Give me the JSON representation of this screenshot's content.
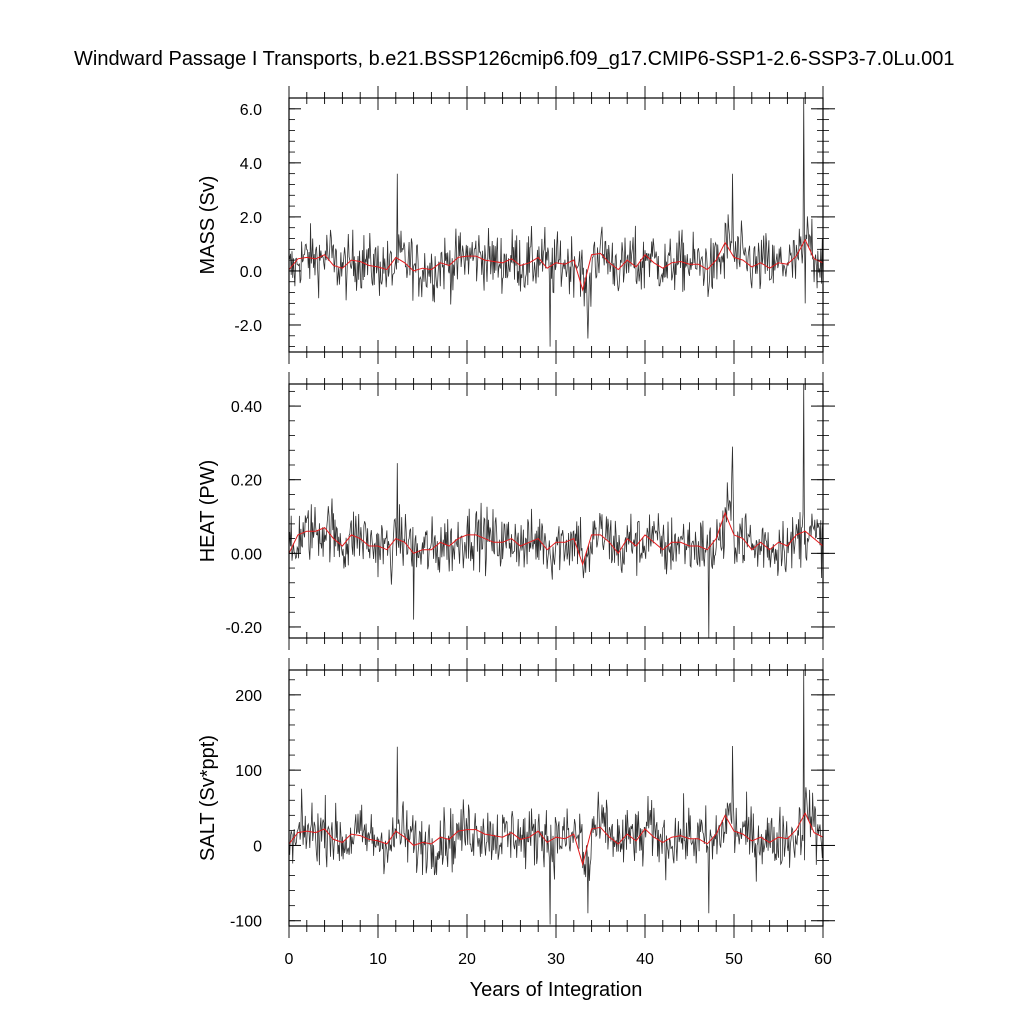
{
  "chart_data": {
    "type": "line",
    "title": "Windward Passage I Transports, b.e21.BSSP126cmip6.f09_g17.CMIP6-SSP1-2.6-SSP3-7.0Lu.001",
    "xlabel": "Years of Integration",
    "xlim": [
      0,
      60
    ],
    "xticks": [
      "0",
      "10",
      "20",
      "30",
      "40",
      "50",
      "60"
    ],
    "grid": false,
    "legend": "none",
    "colors": {
      "monthly": "#303030",
      "annual": "#e41a1c",
      "axis": "#000000"
    },
    "panels": [
      {
        "ylabel": "MASS (Sv)",
        "ylim": [
          -3.0,
          6.4
        ],
        "yticks": [
          "6.0",
          "4.0",
          "2.0",
          "0.0",
          "-2.0"
        ],
        "ytick_values": [
          6.0,
          4.0,
          2.0,
          0.0,
          -2.0
        ],
        "monthly_mean": 0.2,
        "monthly_spread": 0.75,
        "annual": [
          0.05,
          0.45,
          0.5,
          0.45,
          0.6,
          0.2,
          0.1,
          0.4,
          0.35,
          0.2,
          0.15,
          0.05,
          0.5,
          0.3,
          0.0,
          0.1,
          0.05,
          0.3,
          0.2,
          0.5,
          0.55,
          0.55,
          0.4,
          0.35,
          0.3,
          0.45,
          0.2,
          0.3,
          0.5,
          0.1,
          0.3,
          0.25,
          0.4,
          -0.7,
          0.6,
          0.65,
          0.3,
          0.05,
          0.4,
          0.15,
          0.6,
          0.3,
          0.1,
          0.3,
          0.35,
          0.25,
          0.25,
          0.05,
          0.4,
          1.05,
          0.5,
          0.4,
          0.15,
          0.3,
          0.1,
          0.3,
          0.25,
          0.55,
          1.15,
          0.45,
          0.3
        ],
        "spikes": [
          [
            12.2,
            3.6
          ],
          [
            33.6,
            -2.5
          ],
          [
            29.3,
            -2.8
          ],
          [
            49.8,
            3.6
          ],
          [
            57.8,
            6.4
          ],
          [
            58.0,
            -1.2
          ]
        ]
      },
      {
        "ylabel": "HEAT (PW)",
        "ylim": [
          -0.23,
          0.46
        ],
        "yticks": [
          "0.40",
          "0.20",
          "0.00",
          "-0.20"
        ],
        "ytick_values": [
          0.4,
          0.2,
          0.0,
          -0.2
        ],
        "monthly_mean": 0.035,
        "monthly_spread": 0.055,
        "annual": [
          0.0,
          0.05,
          0.06,
          0.06,
          0.07,
          0.04,
          0.02,
          0.05,
          0.04,
          0.02,
          0.02,
          0.01,
          0.04,
          0.03,
          0.0,
          0.01,
          0.01,
          0.03,
          0.02,
          0.04,
          0.05,
          0.05,
          0.04,
          0.03,
          0.03,
          0.04,
          0.02,
          0.03,
          0.04,
          0.01,
          0.03,
          0.03,
          0.04,
          -0.03,
          0.05,
          0.05,
          0.03,
          0.0,
          0.04,
          0.02,
          0.05,
          0.03,
          0.01,
          0.03,
          0.03,
          0.02,
          0.02,
          0.01,
          0.04,
          0.11,
          0.05,
          0.04,
          0.01,
          0.03,
          0.01,
          0.03,
          0.02,
          0.05,
          0.06,
          0.04,
          0.02
        ],
        "spikes": [
          [
            12.2,
            0.245
          ],
          [
            14.0,
            -0.18
          ],
          [
            47.2,
            -0.23
          ],
          [
            49.8,
            0.29
          ],
          [
            57.8,
            0.46
          ]
        ]
      },
      {
        "ylabel": "SALT (Sv*ppt)",
        "ylim": [
          -107,
          233
        ],
        "yticks": [
          "200",
          "100",
          "0",
          "-100"
        ],
        "ytick_values": [
          200,
          100,
          0,
          -100
        ],
        "monthly_mean": 8,
        "monthly_spread": 27,
        "annual": [
          2,
          17,
          19,
          17,
          22,
          8,
          4,
          15,
          13,
          8,
          6,
          2,
          19,
          11,
          0,
          4,
          2,
          11,
          8,
          19,
          21,
          21,
          15,
          13,
          11,
          17,
          8,
          11,
          19,
          4,
          11,
          9,
          15,
          -25,
          22,
          24,
          11,
          2,
          15,
          6,
          22,
          11,
          4,
          11,
          13,
          9,
          9,
          2,
          15,
          40,
          19,
          15,
          6,
          11,
          4,
          11,
          9,
          21,
          43,
          17,
          11
        ],
        "spikes": [
          [
            12.2,
            131
          ],
          [
            29.3,
            -105
          ],
          [
            33.6,
            -90
          ],
          [
            47.2,
            -90
          ],
          [
            49.8,
            132
          ],
          [
            57.8,
            233
          ]
        ]
      }
    ]
  }
}
